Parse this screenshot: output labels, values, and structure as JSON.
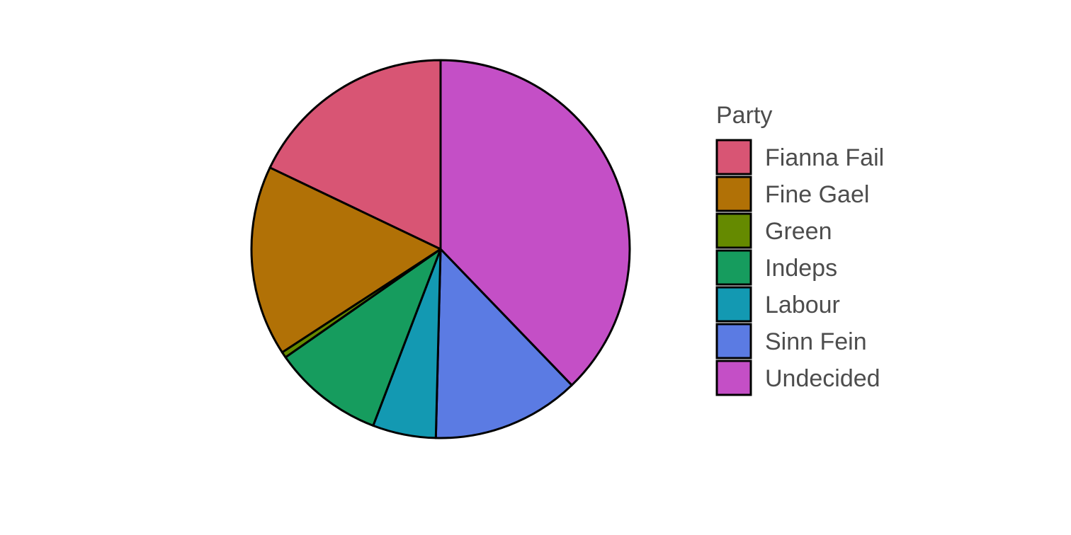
{
  "chart_data": {
    "type": "pie",
    "legend_title": "Party",
    "legend_position": "right",
    "start_angle_deg": 0,
    "direction": "clockwise",
    "slices": [
      {
        "label": "Undecided",
        "value": 37.8,
        "color": "#C44FC6"
      },
      {
        "label": "Sinn Fein",
        "value": 12.6,
        "color": "#5B7BE3"
      },
      {
        "label": "Labour",
        "value": 5.4,
        "color": "#1399B2"
      },
      {
        "label": "Indeps",
        "value": 9.5,
        "color": "#169C5E"
      },
      {
        "label": "Green",
        "value": 0.5,
        "color": "#658A00"
      },
      {
        "label": "Fine Gael",
        "value": 16.3,
        "color": "#B17106"
      },
      {
        "label": "Fianna Fail",
        "value": 17.9,
        "color": "#D85574"
      }
    ],
    "legend_order": [
      "Fianna Fail",
      "Fine Gael",
      "Green",
      "Indeps",
      "Labour",
      "Sinn Fein",
      "Undecided"
    ]
  }
}
